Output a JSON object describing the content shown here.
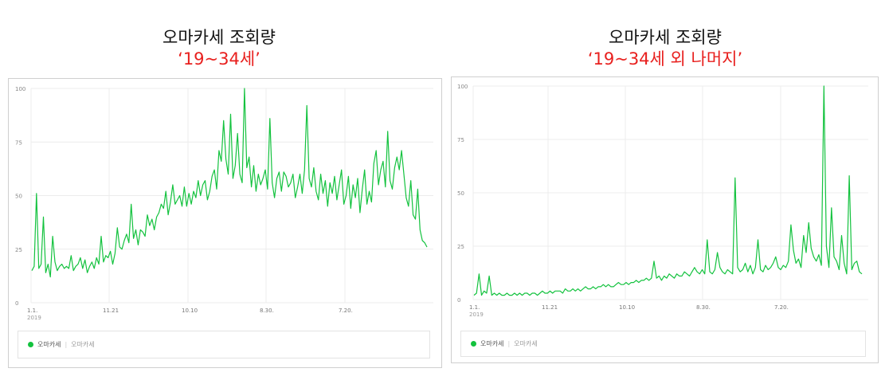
{
  "panels": [
    {
      "title": "오마카세 조회량",
      "subtitle": "‘19~34세’"
    },
    {
      "title": "오마카세 조회량",
      "subtitle": "‘19~34세 외 나머지’"
    }
  ],
  "colors": {
    "line": "#13c23e",
    "subtitle": "#e8201e",
    "grid": "#ececec"
  },
  "chart_data": [
    {
      "type": "line",
      "series": [
        {
          "name": "오마카세",
          "values": [
            15,
            17,
            51,
            16,
            18,
            40,
            14,
            18,
            12,
            31,
            19,
            15,
            17,
            18,
            16,
            17,
            16,
            22,
            15,
            17,
            18,
            21,
            16,
            20,
            14,
            17,
            19,
            16,
            21,
            18,
            31,
            19,
            22,
            21,
            24,
            18,
            23,
            35,
            26,
            25,
            29,
            32,
            28,
            46,
            30,
            34,
            27,
            34,
            33,
            31,
            41,
            36,
            39,
            34,
            40,
            42,
            46,
            44,
            52,
            41,
            47,
            55,
            46,
            48,
            50,
            45,
            54,
            45,
            51,
            46,
            52,
            49,
            57,
            50,
            55,
            57,
            48,
            52,
            59,
            62,
            53,
            71,
            66,
            85,
            67,
            60,
            88,
            58,
            64,
            79,
            60,
            56,
            100,
            63,
            68,
            54,
            64,
            52,
            60,
            55,
            58,
            62,
            53,
            86,
            56,
            49,
            58,
            61,
            52,
            61,
            59,
            54,
            56,
            60,
            49,
            54,
            60,
            51,
            62,
            92,
            58,
            54,
            63,
            52,
            48,
            60,
            51,
            57,
            45,
            56,
            51,
            59,
            48,
            55,
            62,
            46,
            50,
            59,
            44,
            55,
            49,
            58,
            42,
            53,
            62,
            46,
            52,
            47,
            65,
            71,
            55,
            62,
            66,
            54,
            80,
            57,
            53,
            63,
            68,
            62,
            71,
            60,
            49,
            45,
            57,
            41,
            39,
            53,
            34,
            29,
            28,
            26
          ]
        }
      ],
      "x_tick_labels": [
        "1.1.",
        "11.21",
        "10.10",
        "8.30.",
        "7.20."
      ],
      "x_sublabel": "2019",
      "y_ticks": [
        0,
        25,
        50,
        75,
        "100"
      ],
      "ylim": [
        0,
        100
      ]
    },
    {
      "type": "line",
      "series": [
        {
          "name": "오마카세",
          "values": [
            2,
            3,
            12,
            2,
            4,
            3,
            11,
            2,
            3,
            2,
            3,
            2,
            2,
            3,
            2,
            2,
            3,
            2,
            3,
            2,
            3,
            3,
            2,
            3,
            3,
            2,
            3,
            4,
            3,
            3,
            4,
            3,
            4,
            4,
            4,
            3,
            5,
            4,
            4,
            5,
            4,
            5,
            4,
            5,
            6,
            5,
            5,
            6,
            5,
            6,
            6,
            7,
            6,
            7,
            6,
            6,
            7,
            8,
            7,
            7,
            8,
            7,
            8,
            8,
            9,
            8,
            9,
            9,
            10,
            9,
            10,
            18,
            10,
            11,
            9,
            11,
            10,
            12,
            11,
            10,
            12,
            11,
            11,
            13,
            12,
            11,
            13,
            15,
            13,
            12,
            14,
            12,
            28,
            13,
            12,
            14,
            22,
            15,
            13,
            12,
            14,
            13,
            12,
            57,
            15,
            13,
            14,
            17,
            13,
            16,
            12,
            15,
            28,
            14,
            13,
            16,
            14,
            15,
            17,
            20,
            15,
            14,
            16,
            15,
            18,
            35,
            23,
            17,
            19,
            15,
            30,
            22,
            36,
            24,
            20,
            18,
            21,
            16,
            100,
            25,
            15,
            43,
            20,
            18,
            14,
            30,
            17,
            12,
            58,
            14,
            17,
            18,
            13,
            12
          ]
        }
      ],
      "x_tick_labels": [
        "1.1.",
        "11.21",
        "10.10",
        "8.30.",
        "7.20."
      ],
      "x_sublabel": "2019",
      "y_ticks": [
        0,
        25,
        50,
        75,
        "100"
      ],
      "ylim": [
        0,
        100
      ]
    }
  ],
  "legends": [
    {
      "series_label": "오마카세",
      "second_label": "오마카세"
    },
    {
      "series_label": "오마카세",
      "second_label": "오마카세"
    }
  ]
}
